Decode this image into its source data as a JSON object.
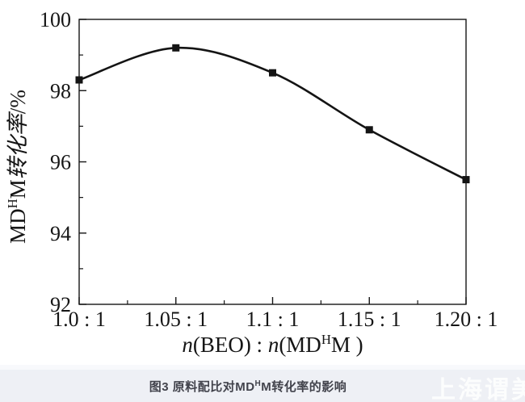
{
  "figure": {
    "caption": {
      "parts": [
        {
          "t": "图3 原料配比对MD"
        },
        {
          "t": "H"
        },
        {
          "t": "M转化率的影响"
        }
      ],
      "text_color": "#42434c"
    },
    "watermark": {
      "text": "上海谓美"
    },
    "strip_background": "#eef0f5"
  },
  "chart_data": {
    "type": "line",
    "title": "",
    "x": [
      1.0,
      1.05,
      1.1,
      1.15,
      1.2
    ],
    "x_tick_labels": [
      "1.0 : 1",
      "1.05 : 1",
      "1.1 : 1",
      "1.15 : 1",
      "1.20 : 1"
    ],
    "x_minor_positions": [
      1.025,
      1.075,
      1.125,
      1.175
    ],
    "series": [
      {
        "name": "MDHM转化率",
        "values": [
          98.3,
          99.2,
          98.5,
          96.9,
          95.5
        ],
        "color": "#141414",
        "marker": "square",
        "line_style": "smooth"
      }
    ],
    "ylim": [
      92,
      100
    ],
    "y_major_ticks": [
      92,
      94,
      96,
      98,
      100
    ],
    "y_minor_ticks": [
      93,
      95,
      97,
      99
    ],
    "xlabel_text": "n(BEO) : n(MDHM )",
    "ylabel_text": "MDHM转化率/%",
    "xlabel_parts": [
      {
        "t": "n",
        "i": true
      },
      {
        "t": "(BEO) : "
      },
      {
        "t": "n",
        "i": true
      },
      {
        "t": "(MD"
      },
      {
        "t": "H",
        "sup": true
      },
      {
        "t": "M )"
      }
    ],
    "ylabel_parts": [
      {
        "t": "MD"
      },
      {
        "t": "H",
        "sup": true
      },
      {
        "t": "M"
      },
      {
        "t": "转化率",
        "i": true
      },
      {
        "t": "/%"
      }
    ],
    "axis_color": "#151515",
    "grid": false,
    "legend": null
  }
}
